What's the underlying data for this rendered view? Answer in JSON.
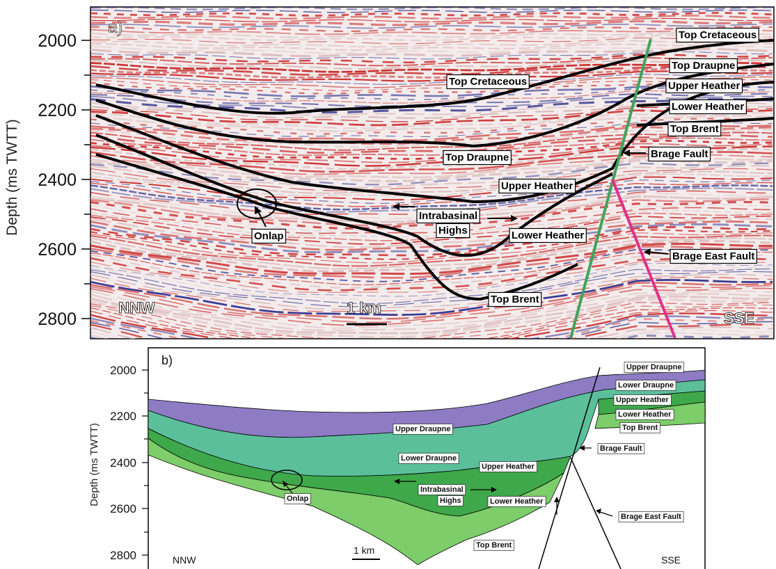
{
  "panel_a": {
    "letter": "a)",
    "y_label": "Depth (ms TWTT)",
    "y_ticks": [
      "2000",
      "2200",
      "2400",
      "2600",
      "2800"
    ],
    "left_dir": "NNW",
    "right_dir": "SSE",
    "scale": "1 km",
    "labels": {
      "top_cretaceous_mid": "Top Cretaceous",
      "top_cretaceous_right": "Top Cretaceous",
      "top_draupne_right": "Top Draupne",
      "upper_heather_right": "Upper Heather",
      "lower_heather_right": "Lower Heather",
      "top_brent_right": "Top Brent",
      "brage_fault": "Brage Fault",
      "top_draupne_mid": "Top Draupne",
      "upper_heather_mid": "Upper Heather",
      "intrabasinal": "Intrabasinal",
      "highs": "Highs",
      "lower_heather_mid": "Lower Heather",
      "onlap": "Onlap",
      "brage_east_fault": "Brage East Fault",
      "top_brent_mid": "Top Brent"
    },
    "colors": {
      "fault_green": "#3fa35a",
      "fault_pink": "#e0308a",
      "seis_red": "#c81e1e",
      "seis_blue": "#2a2d8a"
    }
  },
  "panel_b": {
    "letter": "b)",
    "y_label": "Depth (ms TWTT)",
    "y_ticks": [
      "2000",
      "2200",
      "2400",
      "2600",
      "2800"
    ],
    "left_dir": "NNW",
    "right_dir": "SSE",
    "scale": "1 km",
    "labels": {
      "upper_draupne_right": "Upper Draupne",
      "lower_draupne_right": "Lower Draupne",
      "upper_heather_right": "Upper Heather",
      "lower_heather_right": "Lower Heather",
      "top_brent_right": "Top Brent",
      "brage_fault": "Brage Fault",
      "upper_draupne_mid": "Upper Draupne",
      "lower_draupne_mid": "Lower Draupne",
      "upper_heather_mid": "Upper Heather",
      "intrabasinal": "Intrabasinal",
      "highs": "Highs",
      "lower_heather_mid": "Lower Heather",
      "onlap": "Onlap",
      "brage_east_fault": "Brage East Fault",
      "top_brent_mid": "Top Brent"
    },
    "colors": {
      "upper_draupne": "#8d7cc4",
      "lower_draupne": "#5cbf9c",
      "upper_heather": "#3ea84a",
      "lower_heather": "#7dcd6a"
    }
  }
}
